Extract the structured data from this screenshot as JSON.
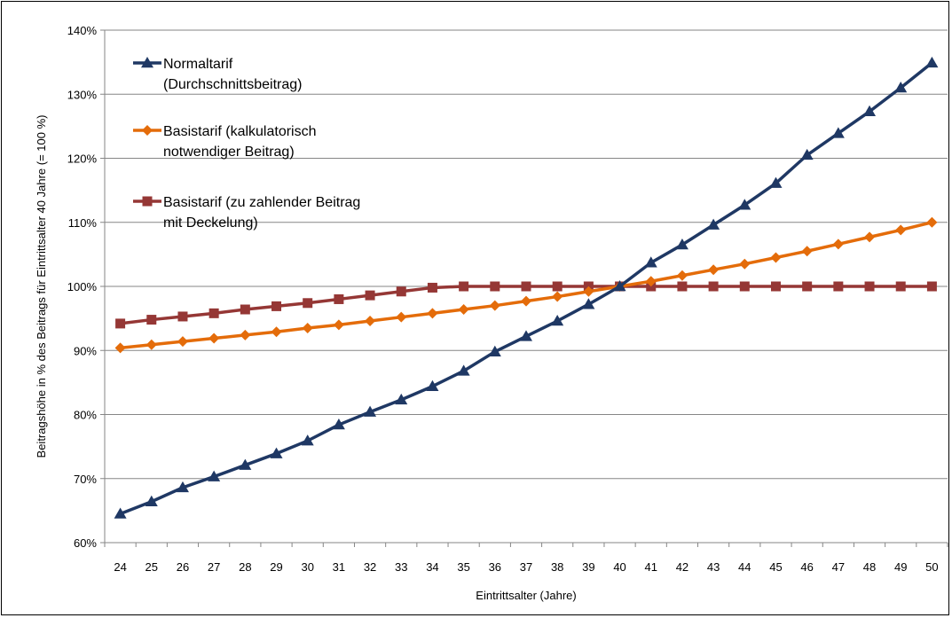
{
  "chart_data": {
    "type": "line",
    "title": "",
    "xlabel": "Eintrittsalter (Jahre)",
    "ylabel": "Beitragshöhe in % des Beitrags für Eintrittsalter 40 Jahre (= 100 %)",
    "x": [
      24,
      25,
      26,
      27,
      28,
      29,
      30,
      31,
      32,
      33,
      34,
      35,
      36,
      37,
      38,
      39,
      40,
      41,
      42,
      43,
      44,
      45,
      46,
      47,
      48,
      49,
      50
    ],
    "y_ticks": [
      "60%",
      "70%",
      "80%",
      "90%",
      "100%",
      "110%",
      "120%",
      "130%",
      "140%"
    ],
    "ylim": [
      60,
      140
    ],
    "y_unit": "%",
    "grid": "horizontal",
    "legend_position": "top-left",
    "series": [
      {
        "name_lines": [
          "Normaltarif",
          "(Durchschnittsbeitrag)"
        ],
        "color": "#1f3864",
        "marker": "triangle",
        "values": [
          64.5,
          66.4,
          68.6,
          70.3,
          72.1,
          73.9,
          75.9,
          78.4,
          80.4,
          82.3,
          84.4,
          86.8,
          89.8,
          92.2,
          94.6,
          97.2,
          100.0,
          103.7,
          106.5,
          109.6,
          112.7,
          116.1,
          120.5,
          123.9,
          127.3,
          131.0,
          134.9
        ]
      },
      {
        "name_lines": [
          "Basistarif (kalkulatorisch",
          "notwendiger Beitrag)"
        ],
        "color": "#e46c0a",
        "marker": "diamond",
        "values": [
          90.4,
          90.9,
          91.4,
          91.9,
          92.4,
          92.9,
          93.5,
          94.0,
          94.6,
          95.2,
          95.8,
          96.4,
          97.0,
          97.7,
          98.4,
          99.2,
          100.0,
          100.8,
          101.7,
          102.6,
          103.5,
          104.5,
          105.5,
          106.6,
          107.7,
          108.8,
          110.0
        ]
      },
      {
        "name_lines": [
          "Basistarif (zu zahlender Beitrag",
          "mit Deckelung)"
        ],
        "color": "#953735",
        "marker": "square",
        "values": [
          94.2,
          94.8,
          95.3,
          95.8,
          96.4,
          96.9,
          97.4,
          98.0,
          98.6,
          99.2,
          99.8,
          100.0,
          100.0,
          100.0,
          100.0,
          100.0,
          100.0,
          100.0,
          100.0,
          100.0,
          100.0,
          100.0,
          100.0,
          100.0,
          100.0,
          100.0,
          100.0
        ]
      }
    ]
  }
}
